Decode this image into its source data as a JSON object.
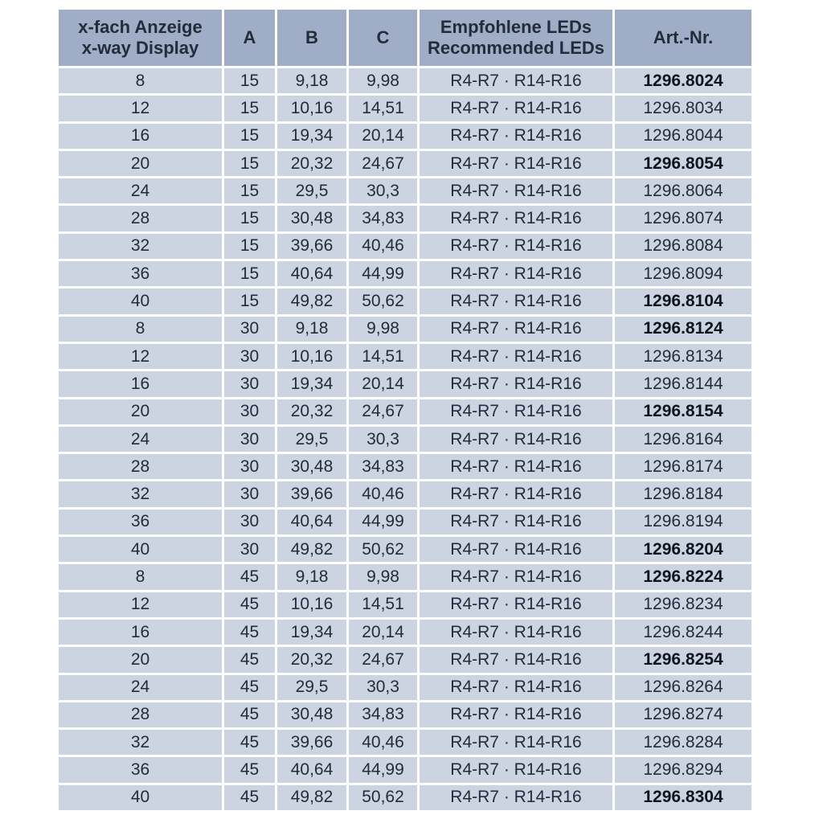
{
  "table": {
    "headers": {
      "display": {
        "line1": "x-fach Anzeige",
        "line2": "x-way Display"
      },
      "a": "A",
      "b": "B",
      "c": "C",
      "leds": {
        "line1": "Empfohlene LEDs",
        "line2": "Recommended LEDs"
      },
      "art": "Art.-Nr."
    },
    "colors": {
      "header_bg": "#a0adc6",
      "row_bg": "#ccd3e1",
      "text": "#232c3a",
      "bold_text": "#0f151e",
      "gap": "#ffffff"
    },
    "rows": [
      {
        "x": "8",
        "a": "15",
        "b": "9,18",
        "c": "9,98",
        "leds": "R4-R7 · R14-R16",
        "art": "1296.8024",
        "bold": true
      },
      {
        "x": "12",
        "a": "15",
        "b": "10,16",
        "c": "14,51",
        "leds": "R4-R7 · R14-R16",
        "art": "1296.8034",
        "bold": false
      },
      {
        "x": "16",
        "a": "15",
        "b": "19,34",
        "c": "20,14",
        "leds": "R4-R7 · R14-R16",
        "art": "1296.8044",
        "bold": false
      },
      {
        "x": "20",
        "a": "15",
        "b": "20,32",
        "c": "24,67",
        "leds": "R4-R7 · R14-R16",
        "art": "1296.8054",
        "bold": true
      },
      {
        "x": "24",
        "a": "15",
        "b": "29,5",
        "c": "30,3",
        "leds": "R4-R7 · R14-R16",
        "art": "1296.8064",
        "bold": false
      },
      {
        "x": "28",
        "a": "15",
        "b": "30,48",
        "c": "34,83",
        "leds": "R4-R7 · R14-R16",
        "art": "1296.8074",
        "bold": false
      },
      {
        "x": "32",
        "a": "15",
        "b": "39,66",
        "c": "40,46",
        "leds": "R4-R7 · R14-R16",
        "art": "1296.8084",
        "bold": false
      },
      {
        "x": "36",
        "a": "15",
        "b": "40,64",
        "c": "44,99",
        "leds": "R4-R7 · R14-R16",
        "art": "1296.8094",
        "bold": false
      },
      {
        "x": "40",
        "a": "15",
        "b": "49,82",
        "c": "50,62",
        "leds": "R4-R7 · R14-R16",
        "art": "1296.8104",
        "bold": true
      },
      {
        "x": "8",
        "a": "30",
        "b": "9,18",
        "c": "9,98",
        "leds": "R4-R7 · R14-R16",
        "art": "1296.8124",
        "bold": true
      },
      {
        "x": "12",
        "a": "30",
        "b": "10,16",
        "c": "14,51",
        "leds": "R4-R7 · R14-R16",
        "art": "1296.8134",
        "bold": false
      },
      {
        "x": "16",
        "a": "30",
        "b": "19,34",
        "c": "20,14",
        "leds": "R4-R7 · R14-R16",
        "art": "1296.8144",
        "bold": false
      },
      {
        "x": "20",
        "a": "30",
        "b": "20,32",
        "c": "24,67",
        "leds": "R4-R7 · R14-R16",
        "art": "1296.8154",
        "bold": true
      },
      {
        "x": "24",
        "a": "30",
        "b": "29,5",
        "c": "30,3",
        "leds": "R4-R7 · R14-R16",
        "art": "1296.8164",
        "bold": false
      },
      {
        "x": "28",
        "a": "30",
        "b": "30,48",
        "c": "34,83",
        "leds": "R4-R7 · R14-R16",
        "art": "1296.8174",
        "bold": false
      },
      {
        "x": "32",
        "a": "30",
        "b": "39,66",
        "c": "40,46",
        "leds": "R4-R7 · R14-R16",
        "art": "1296.8184",
        "bold": false
      },
      {
        "x": "36",
        "a": "30",
        "b": "40,64",
        "c": "44,99",
        "leds": "R4-R7 · R14-R16",
        "art": "1296.8194",
        "bold": false
      },
      {
        "x": "40",
        "a": "30",
        "b": "49,82",
        "c": "50,62",
        "leds": "R4-R7 · R14-R16",
        "art": "1296.8204",
        "bold": true
      },
      {
        "x": "8",
        "a": "45",
        "b": "9,18",
        "c": "9,98",
        "leds": "R4-R7 · R14-R16",
        "art": "1296.8224",
        "bold": true
      },
      {
        "x": "12",
        "a": "45",
        "b": "10,16",
        "c": "14,51",
        "leds": "R4-R7 · R14-R16",
        "art": "1296.8234",
        "bold": false
      },
      {
        "x": "16",
        "a": "45",
        "b": "19,34",
        "c": "20,14",
        "leds": "R4-R7 · R14-R16",
        "art": "1296.8244",
        "bold": false
      },
      {
        "x": "20",
        "a": "45",
        "b": "20,32",
        "c": "24,67",
        "leds": "R4-R7 · R14-R16",
        "art": "1296.8254",
        "bold": true
      },
      {
        "x": "24",
        "a": "45",
        "b": "29,5",
        "c": "30,3",
        "leds": "R4-R7 · R14-R16",
        "art": "1296.8264",
        "bold": false
      },
      {
        "x": "28",
        "a": "45",
        "b": "30,48",
        "c": "34,83",
        "leds": "R4-R7 · R14-R16",
        "art": "1296.8274",
        "bold": false
      },
      {
        "x": "32",
        "a": "45",
        "b": "39,66",
        "c": "40,46",
        "leds": "R4-R7 · R14-R16",
        "art": "1296.8284",
        "bold": false
      },
      {
        "x": "36",
        "a": "45",
        "b": "40,64",
        "c": "44,99",
        "leds": "R4-R7 · R14-R16",
        "art": "1296.8294",
        "bold": false
      },
      {
        "x": "40",
        "a": "45",
        "b": "49,82",
        "c": "50,62",
        "leds": "R4-R7 · R14-R16",
        "art": "1296.8304",
        "bold": true
      }
    ]
  }
}
